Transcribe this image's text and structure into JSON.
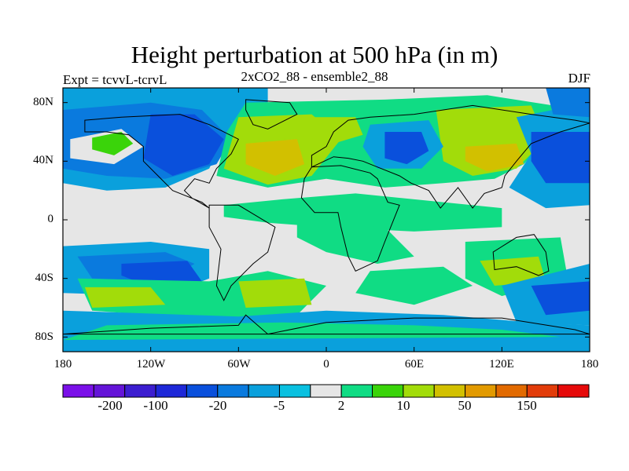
{
  "title": "Height perturbation at 500 hPa (in m)",
  "left_string": "Expt = tcvvL-tcrvL",
  "center_string": "2xCO2_88 - ensemble2_88",
  "right_string": "DJF",
  "y_tick_labels": [
    "80N",
    "40N",
    "0",
    "40S",
    "80S"
  ],
  "x_tick_labels": [
    "180",
    "120W",
    "60W",
    "0",
    "60E",
    "120E",
    "180"
  ],
  "colorbar": {
    "colors": [
      "#7a10e8",
      "#6414d8",
      "#3c1ed0",
      "#1e28d8",
      "#0a50dc",
      "#0a7ade",
      "#0aa0dc",
      "#0ac0e0",
      "#e6e6e6",
      "#10dc84",
      "#3ad40a",
      "#a2dc0a",
      "#d2c000",
      "#e29a00",
      "#e26a00",
      "#e23c0a",
      "#e60a0a"
    ],
    "tick_labels": [
      "-200",
      "-100",
      "-20",
      "-5",
      "2",
      "10",
      "50",
      "150"
    ]
  },
  "chart_data": {
    "type": "filled-contour-map",
    "title": "Height perturbation at 500 hPa (in m)",
    "variable": "500 hPa height perturbation",
    "units": "m",
    "season": "DJF",
    "experiment": "tcvvL-tcrvL",
    "case": "2xCO2_88 - ensemble2_88",
    "x_range_deg": [
      -180,
      180
    ],
    "y_range_deg": [
      -90,
      90
    ],
    "contour_levels": [
      -300,
      -200,
      -150,
      -100,
      -50,
      -20,
      -10,
      -5,
      -2,
      2,
      5,
      10,
      20,
      50,
      100,
      150,
      200,
      300
    ],
    "field_features": [
      {
        "lat": 53,
        "lon": -148,
        "value": 10
      },
      {
        "lat": 48,
        "lon": -95,
        "value": -20
      },
      {
        "lat": 70,
        "lon": -130,
        "value": -5
      },
      {
        "lat": 40,
        "lon": -165,
        "value": -20
      },
      {
        "lat": 40,
        "lon": -45,
        "value": 50
      },
      {
        "lat": 47,
        "lon": 55,
        "value": -20
      },
      {
        "lat": 45,
        "lon": 115,
        "value": 50
      },
      {
        "lat": 30,
        "lon": 100,
        "value": 20
      },
      {
        "lat": 45,
        "lon": 170,
        "value": -20
      },
      {
        "lat": 75,
        "lon": 165,
        "value": -5
      },
      {
        "lat": -40,
        "lon": -110,
        "value": -5
      },
      {
        "lat": -50,
        "lon": -145,
        "value": 10
      },
      {
        "lat": -50,
        "lon": -30,
        "value": 10
      },
      {
        "lat": -40,
        "lon": 115,
        "value": 20
      },
      {
        "lat": -55,
        "lon": 160,
        "value": -20
      },
      {
        "lat": -75,
        "lon": 90,
        "value": -5
      },
      {
        "lat": -10,
        "lon": 35,
        "value": 5
      },
      {
        "lat": 5,
        "lon": -160,
        "value": 0
      }
    ]
  }
}
